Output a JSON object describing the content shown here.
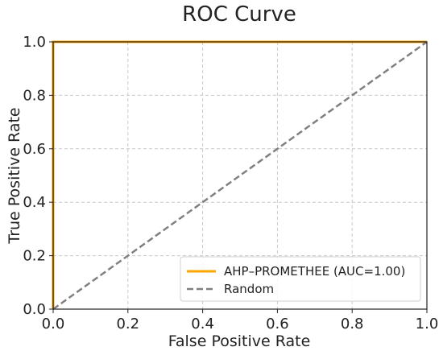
{
  "chart_data": {
    "type": "line",
    "title": "ROC Curve",
    "xlabel": "False Positive Rate",
    "ylabel": "True Positive Rate",
    "xlim": [
      0,
      1
    ],
    "ylim": [
      0,
      1
    ],
    "xticks": [
      "0.0",
      "0.2",
      "0.4",
      "0.6",
      "0.8",
      "1.0"
    ],
    "yticks": [
      "0.0",
      "0.2",
      "0.4",
      "0.6",
      "0.8",
      "1.0"
    ],
    "grid": true,
    "legend_position": "bottom-right",
    "series": [
      {
        "name": "AHP–PROMETHEE (AUC=1.00)",
        "color": "#FFA500",
        "style": "solid",
        "x": [
          0,
          0,
          1
        ],
        "y": [
          0,
          1,
          1
        ]
      },
      {
        "name": "Random",
        "color": "#808080",
        "style": "dashed",
        "x": [
          0,
          1
        ],
        "y": [
          0,
          1
        ]
      }
    ]
  }
}
